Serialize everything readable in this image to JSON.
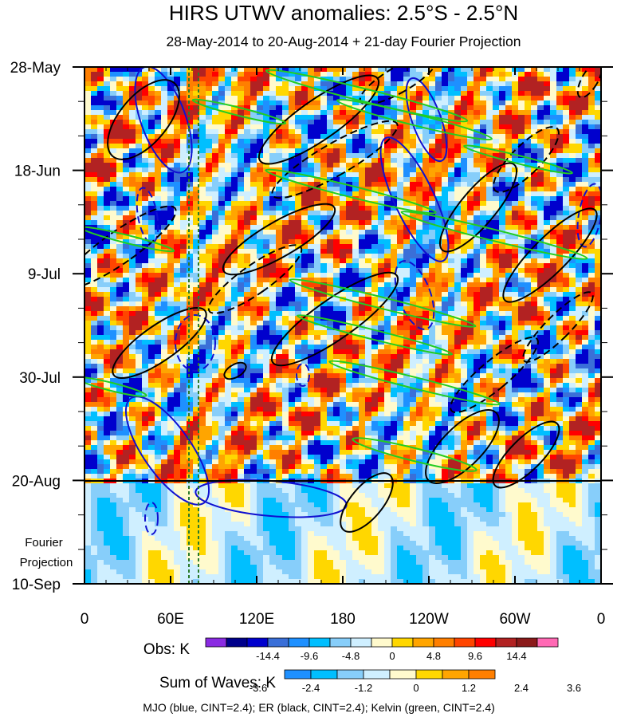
{
  "chart_data": {
    "type": "heatmap",
    "title": "HIRS UTWV anomalies: 2.5°S - 2.5°N",
    "subtitle": "28-May-2014 to 20-Aug-2014 + 21-day Fourier Projection",
    "xlabel": "",
    "ylabel": "",
    "x_tick_labels": [
      "0",
      "60E",
      "120E",
      "180",
      "120W",
      "60W",
      "0"
    ],
    "y_tick_labels": [
      "28-May",
      "18-Jun",
      "9-Jul",
      "30-Jul",
      "20-Aug",
      "10-Sep"
    ],
    "projection_label": [
      "Fourier",
      "Projection"
    ],
    "obs_legend": {
      "label": "Obs: K",
      "tick_labels": [
        "-14.4",
        "-9.6",
        "-4.8",
        "0",
        "4.8",
        "9.6",
        "14.4"
      ],
      "colors": [
        "#8a2be2",
        "#00008b",
        "#0000cd",
        "#3a6fd8",
        "#1e90ff",
        "#00bfff",
        "#87cefa",
        "#cfefff",
        "#fffacd",
        "#ffd700",
        "#ffa500",
        "#ff7f00",
        "#ff4500",
        "#ff0000",
        "#b22222",
        "#8b1a1a",
        "#ff69b4"
      ]
    },
    "waves_legend": {
      "label": "Sum of Waves: K",
      "tick_labels": [
        "-3.6",
        "-2.4",
        "-1.2",
        "0",
        "1.2",
        "2.4",
        "3.6"
      ],
      "colors": [
        "#1e90ff",
        "#00bfff",
        "#87cefa",
        "#cfefff",
        "#fffacd",
        "#ffd700",
        "#ffa500",
        "#ff7f00"
      ]
    },
    "footer": "MJO (blue, CINT=2.4); ER (black, CINT=2.4); Kelvin (green, CINT=2.4)",
    "contour_colors": {
      "mjo": "#1010d0",
      "er": "#000000",
      "kelvin": "#22cc22",
      "marker": "#2a7a2a"
    },
    "dates_range": [
      "28-May-2014",
      "10-Sep-2014"
    ],
    "observation_end": "20-Aug-2014"
  }
}
